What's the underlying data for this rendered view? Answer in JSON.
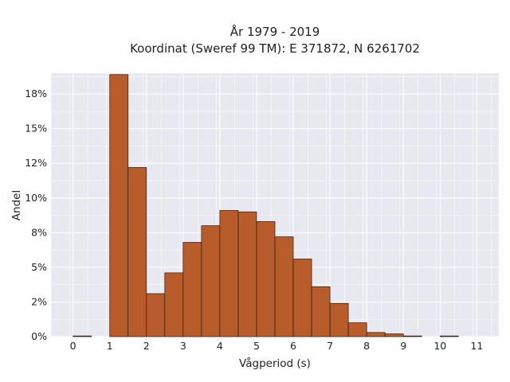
{
  "chart_data": {
    "type": "bar",
    "title": "År 1979 - 2019",
    "subtitle": "Koordinat (Sweref 99 TM): E 371872, N 6261702",
    "xlabel": "Vågperiod (s)",
    "ylabel": "Andel",
    "bin_width": 0.5,
    "bins": [
      {
        "x0": 0.0,
        "x1": 0.5,
        "value": 0.05
      },
      {
        "x0": 1.0,
        "x1": 1.5,
        "value": 18.9
      },
      {
        "x0": 1.5,
        "x1": 2.0,
        "value": 12.2
      },
      {
        "x0": 2.0,
        "x1": 2.5,
        "value": 3.1
      },
      {
        "x0": 2.5,
        "x1": 3.0,
        "value": 4.6
      },
      {
        "x0": 3.0,
        "x1": 3.5,
        "value": 6.8
      },
      {
        "x0": 3.5,
        "x1": 4.0,
        "value": 8.0
      },
      {
        "x0": 4.0,
        "x1": 4.5,
        "value": 9.1
      },
      {
        "x0": 4.5,
        "x1": 5.0,
        "value": 9.0
      },
      {
        "x0": 5.0,
        "x1": 5.5,
        "value": 8.3
      },
      {
        "x0": 5.5,
        "x1": 6.0,
        "value": 7.2
      },
      {
        "x0": 6.0,
        "x1": 6.5,
        "value": 5.6
      },
      {
        "x0": 6.5,
        "x1": 7.0,
        "value": 3.6
      },
      {
        "x0": 7.0,
        "x1": 7.5,
        "value": 2.4
      },
      {
        "x0": 7.5,
        "x1": 8.0,
        "value": 1.0
      },
      {
        "x0": 8.0,
        "x1": 8.5,
        "value": 0.3
      },
      {
        "x0": 8.5,
        "x1": 9.0,
        "value": 0.2
      },
      {
        "x0": 9.0,
        "x1": 9.5,
        "value": 0.05
      },
      {
        "x0": 10.0,
        "x1": 10.5,
        "value": 0.05
      }
    ],
    "xticks": [
      0,
      1,
      2,
      3,
      4,
      5,
      6,
      7,
      8,
      9,
      10,
      11
    ],
    "xlim": [
      -0.6,
      11.6
    ],
    "yticks": [
      0,
      2.5,
      5,
      7.5,
      10,
      12.5,
      15,
      17.5
    ],
    "ytick_labels": [
      "0%",
      "2%",
      "5%",
      "8%",
      "10%",
      "12%",
      "15%",
      "18%"
    ],
    "ylim": [
      0,
      19.0
    ],
    "grid": true,
    "bar_color": "#b85c2c",
    "bar_edge_color": "#2b1a10",
    "background_color": "#e8e8f0"
  }
}
